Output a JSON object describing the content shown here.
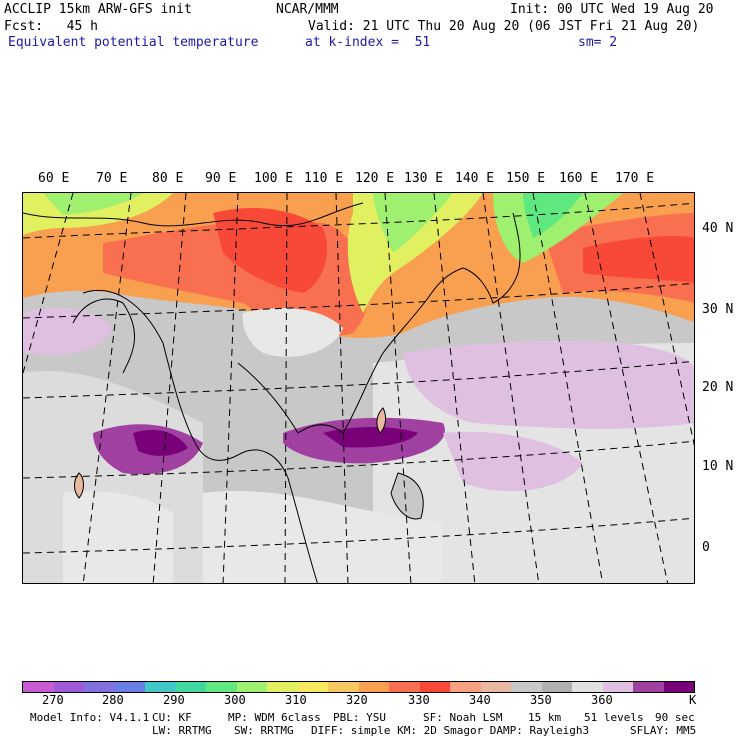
{
  "header": {
    "left1": "ACCLIP 15km ARW-GFS init",
    "center1": "NCAR/MMM",
    "right1": "Init: 00 UTC Wed 19 Aug 20",
    "left2": "Fcst:   45 h",
    "right2": "Valid: 21 UTC Thu 20 Aug 20 (06 JST Fri 21 Aug 20)",
    "field": "Equivalent potential temperature",
    "level": "at k-index =  51",
    "smooth": "sm= 2"
  },
  "map": {
    "lon_labels": [
      "60 E",
      "70 E",
      "80 E",
      "90 E",
      "100 E",
      "110 E",
      "120 E",
      "130 E",
      "140 E",
      "150 E",
      "160 E",
      "170 E"
    ],
    "lat_labels": [
      "40 N",
      "30 N",
      "20 N",
      "10 N",
      "0"
    ]
  },
  "colorbar": {
    "colors": [
      "#c85ad2",
      "#a05ad8",
      "#8070e0",
      "#6a7ee8",
      "#40c8c8",
      "#40d8a0",
      "#60e880",
      "#a0f070",
      "#e0f060",
      "#f8e860",
      "#f8c860",
      "#f8a050",
      "#f87050",
      "#f84838",
      "#f8a080",
      "#e8b8a0",
      "#c8c8c8",
      "#b0b0b0",
      "#e0e0e0",
      "#e0c0e0",
      "#a040a0",
      "#780078"
    ],
    "labels": [
      "270",
      "280",
      "290",
      "300",
      "310",
      "320",
      "330",
      "340",
      "350",
      "360"
    ],
    "unit": "K"
  },
  "footer": {
    "line1_left": "Model Info: V4.1.1",
    "line1_cu": "CU: KF",
    "line1_mp": "MP: WDM 6class",
    "line1_pbl": "PBL: YSU",
    "line1_sf": "SF: Noah LSM",
    "line1_res": "15 km",
    "line1_lev": "51 levels",
    "line1_dt": "90 sec",
    "line2_lw": "LW: RRTMG",
    "line2_sw": "SW: RRTMG",
    "line2_diff": "DIFF: simple KM: 2D Smagor DAMP: Rayleigh3",
    "line2_sflay": "SFLAY: MM5"
  }
}
